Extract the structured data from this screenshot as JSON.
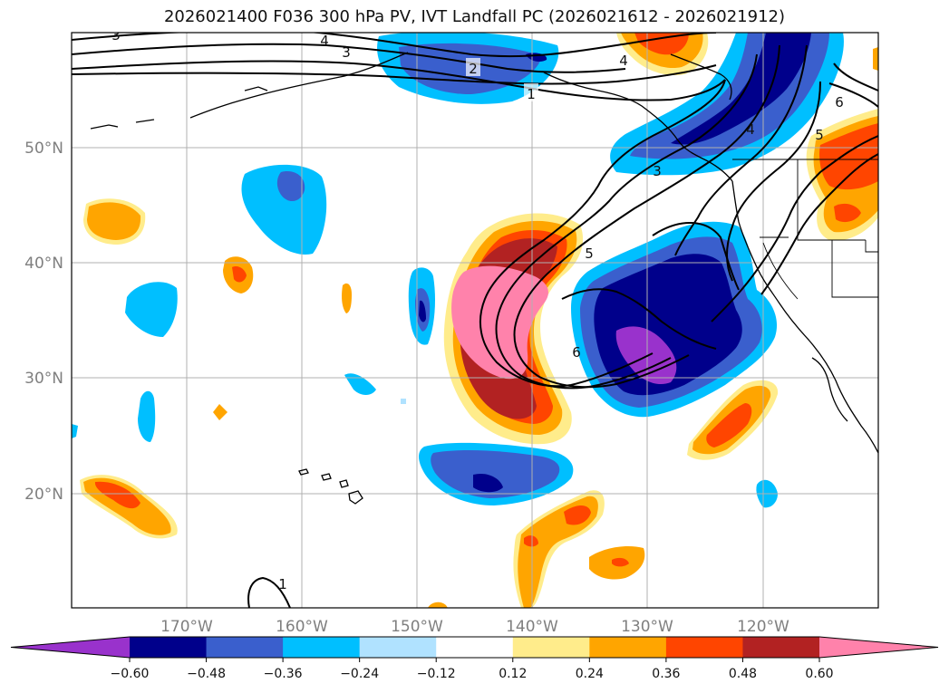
{
  "title": "2026021400 F036 300 hPa PV, IVT Landfall PC (2026021612 - 2026021912)",
  "chart_data": {
    "type": "filled-contour-map",
    "title": "2026021400 F036 300 hPa PV, IVT Landfall PC (2026021612 - 2026021912)",
    "lon_ticks": [
      "170°W",
      "160°W",
      "150°W",
      "140°W",
      "130°W",
      "120°W"
    ],
    "lat_ticks": [
      "50°N",
      "40°N",
      "30°N",
      "20°N"
    ],
    "lon_range": [
      -180,
      -110
    ],
    "lat_range": [
      10,
      60
    ],
    "grid": true,
    "colorbar": {
      "orientation": "horizontal",
      "extend": "both",
      "levels": [
        -0.72,
        -0.6,
        -0.48,
        -0.36,
        -0.24,
        -0.12,
        0.12,
        0.24,
        0.36,
        0.48,
        0.6,
        0.72
      ],
      "tick_labels": [
        "−0.60",
        "−0.48",
        "−0.36",
        "−0.24",
        "−0.12",
        "0.12",
        "0.24",
        "0.36",
        "0.48",
        "0.60"
      ],
      "colors": [
        "#9932cc",
        "#00008b",
        "#3a5fcd",
        "#00bfff",
        "#b0e2ff",
        "#ffffff",
        "#ffec8b",
        "#ffa500",
        "#ff4500",
        "#b22222",
        "#ff82ab"
      ]
    },
    "pv_contour_labels": [
      "1",
      "2",
      "3",
      "4",
      "5",
      "6"
    ]
  }
}
